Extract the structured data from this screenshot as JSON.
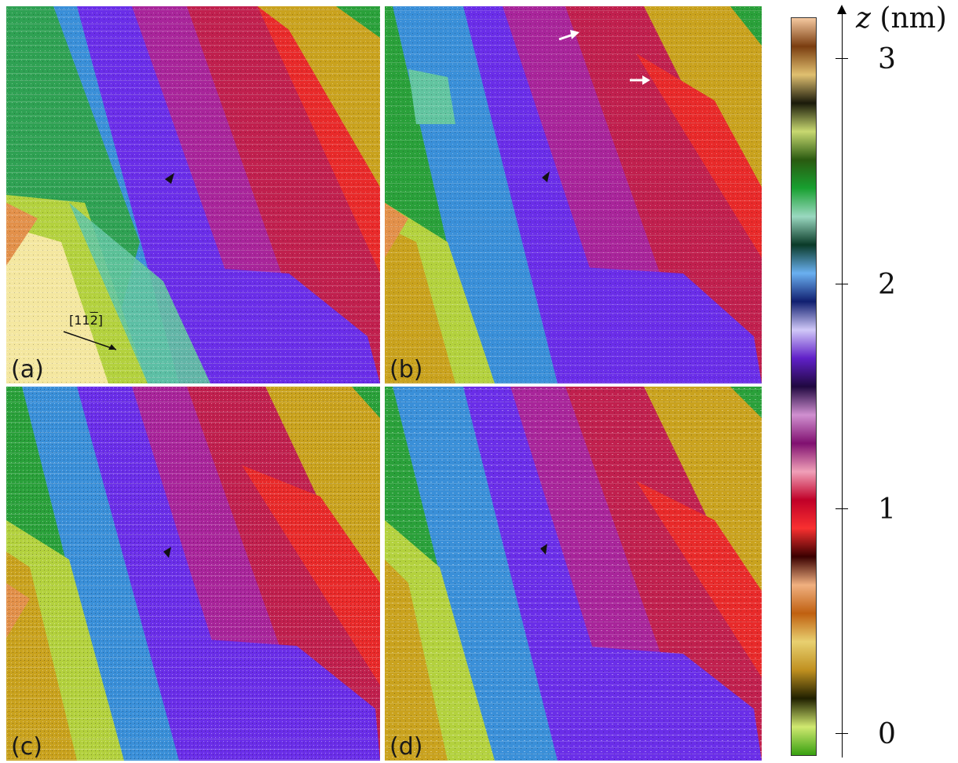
{
  "panels": [
    {
      "id": "a",
      "label": "(a)"
    },
    {
      "id": "b",
      "label": "(b)"
    },
    {
      "id": "c",
      "label": "(c)"
    },
    {
      "id": "d",
      "label": "(d)"
    }
  ],
  "direction_label": "[11\u00042]",
  "colorbar": {
    "axis_var": "z",
    "axis_unit": "(nm)",
    "ticks": [
      "3",
      "2",
      "1",
      "0"
    ],
    "colors": [
      "#f5c9a0",
      "#7a3d10",
      "#e0c070",
      "#1a1a0a",
      "#c8d870",
      "#2a5a10",
      "#18a030",
      "#9ad8c0",
      "#0a3a28",
      "#6ab0f0",
      "#101f70",
      "#d0c8f8",
      "#6020c8",
      "#200840",
      "#d090d0",
      "#801070",
      "#f0a0b8",
      "#c00028",
      "#f83030",
      "#3a0000",
      "#f0b080",
      "#c06010",
      "#e8d070",
      "#c09020",
      "#202000",
      "#d0e870",
      "#38a010"
    ]
  },
  "terraces": [
    "#e2c9a8",
    "#f4e7a0",
    "#d8e88a",
    "#b3d13e",
    "#2ea24c",
    "#62c4a0",
    "#3a8fd8",
    "#6a2ee8",
    "#a8259a",
    "#c0204e",
    "#e82a2a",
    "#c9a21e",
    "#2aa03a"
  ]
}
